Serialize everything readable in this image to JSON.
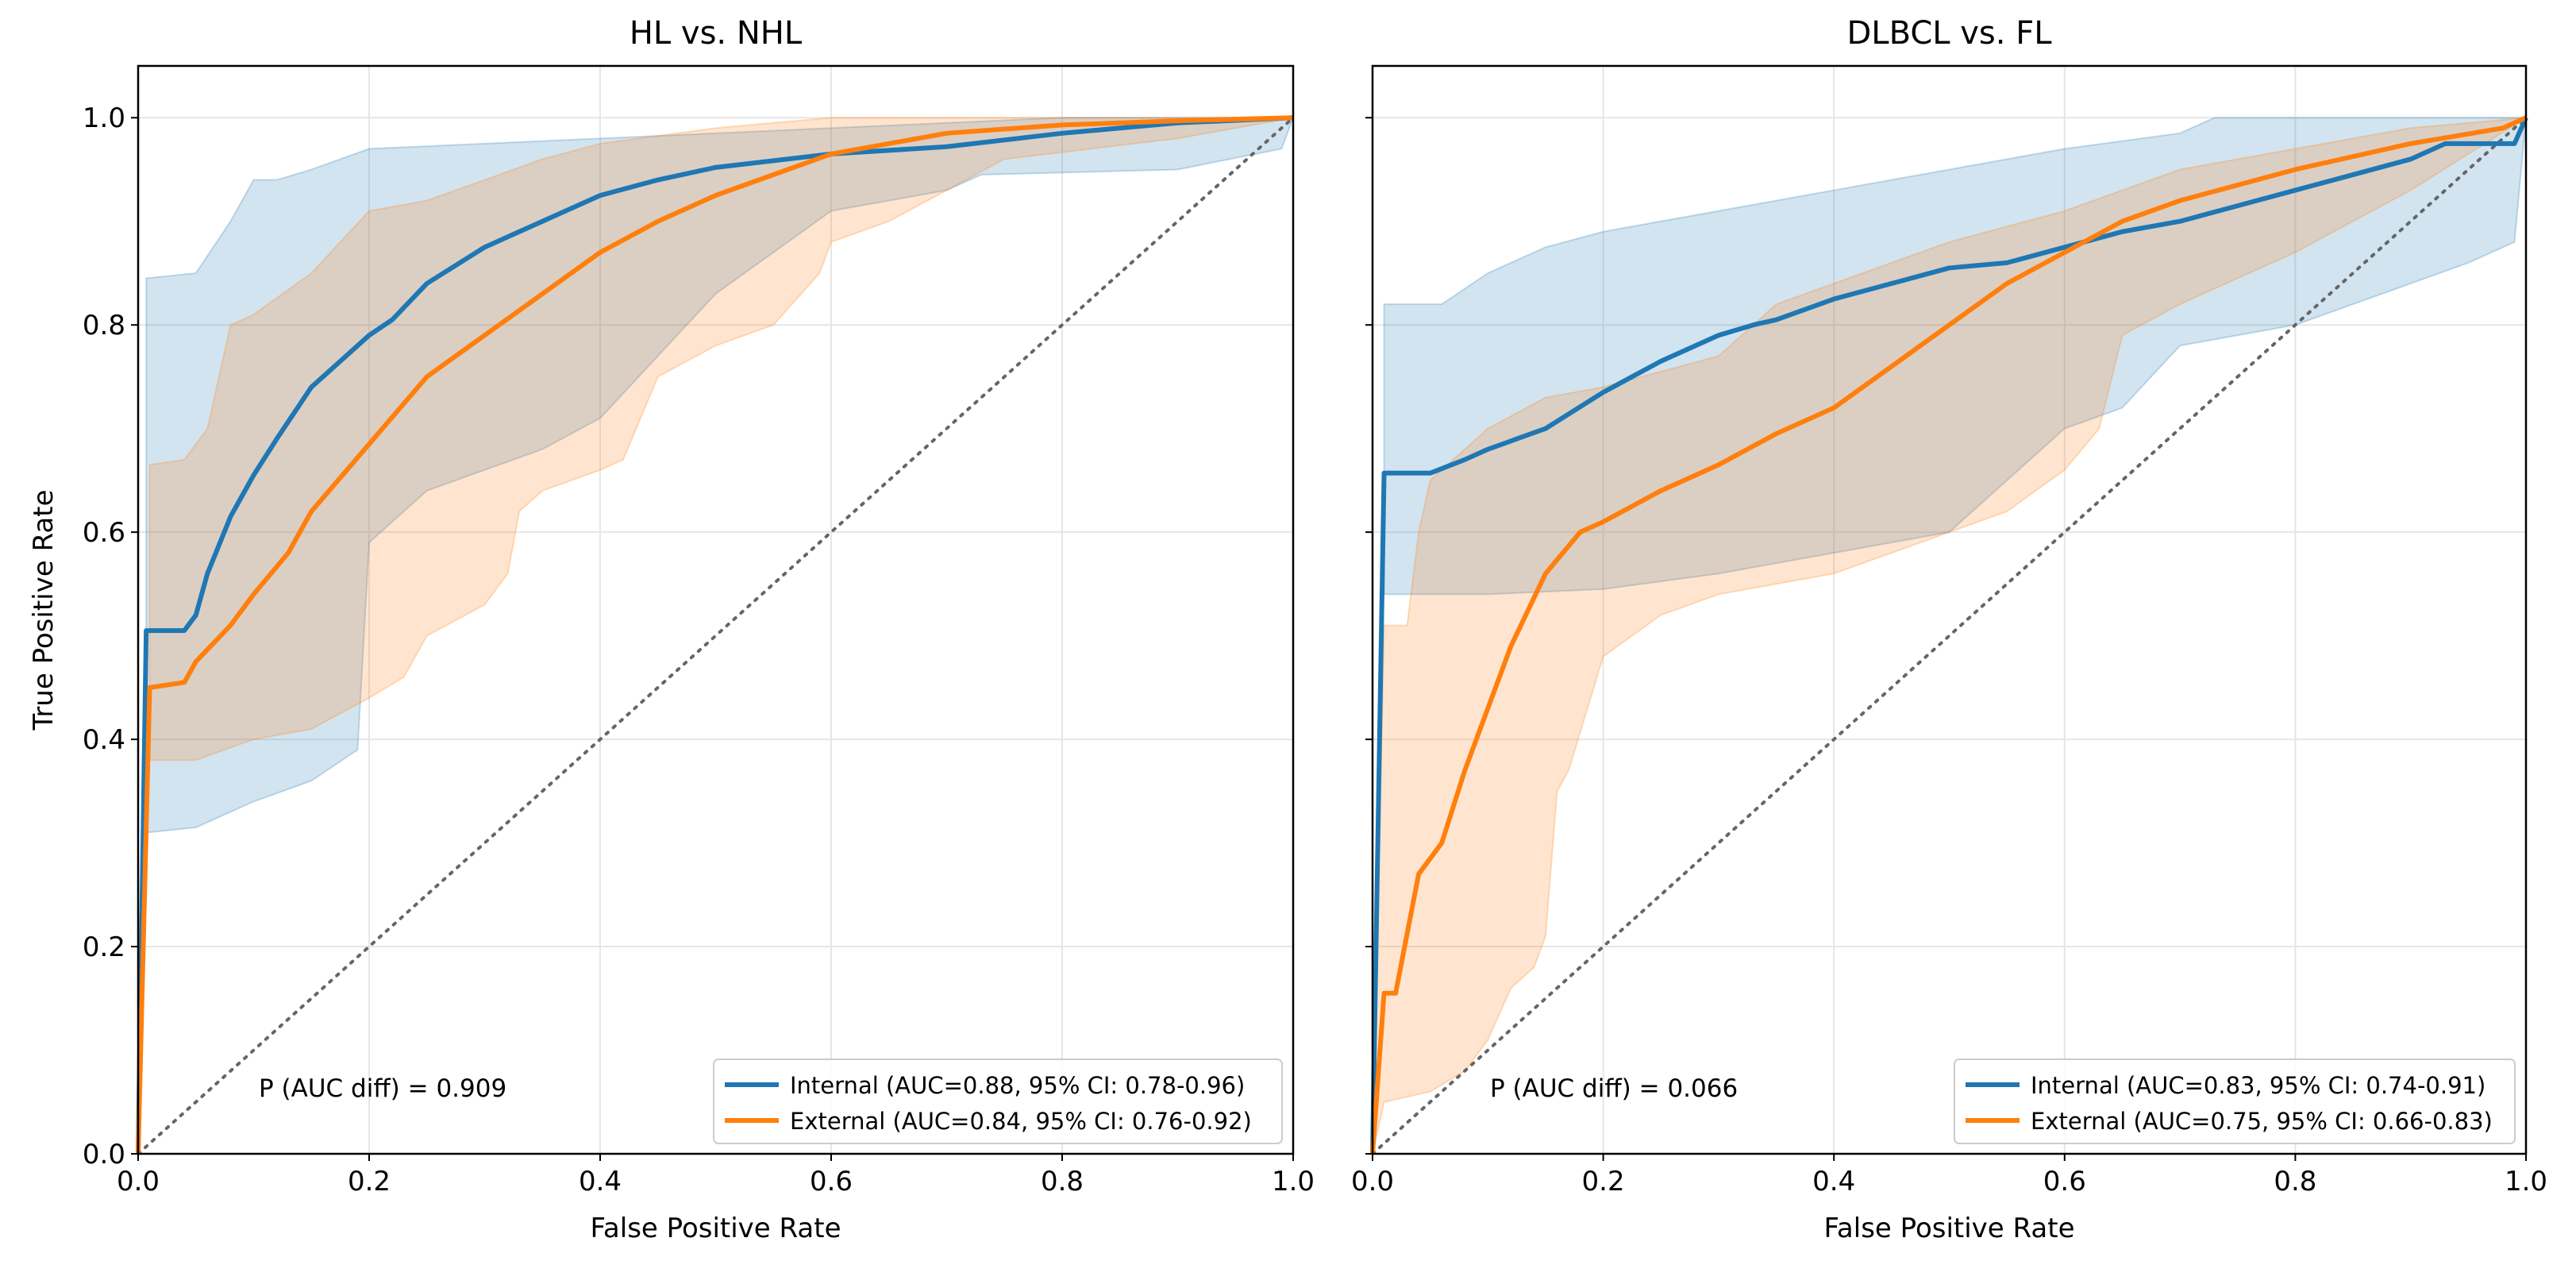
{
  "colors": {
    "internal": "#1f77b4",
    "external": "#ff7f0e",
    "diag": "#666666"
  },
  "chart_data": [
    {
      "type": "line",
      "title": "HL vs. NHL",
      "xlabel": "False Positive Rate",
      "ylabel": "True Positive Rate",
      "xlim": [
        0,
        1
      ],
      "ylim": [
        0,
        1.05
      ],
      "xticks": [
        "0.0",
        "0.2",
        "0.4",
        "0.6",
        "0.8",
        "1.0"
      ],
      "yticks": [
        "0.0",
        "0.2",
        "0.4",
        "0.6",
        "0.8",
        "1.0"
      ],
      "grid": true,
      "legend_placement": "lower-right",
      "annotation": "P (AUC diff) = 0.909",
      "series": [
        {
          "name": "Internal (AUC=0.88, 95% CI: 0.78-0.96)",
          "color_key": "internal",
          "x": [
            0,
            0.007,
            0.04,
            0.05,
            0.06,
            0.08,
            0.1,
            0.12,
            0.15,
            0.18,
            0.2,
            0.22,
            0.25,
            0.3,
            0.35,
            0.4,
            0.45,
            0.5,
            0.6,
            0.7,
            0.8,
            0.9,
            1
          ],
          "y": [
            0,
            0.505,
            0.505,
            0.52,
            0.56,
            0.615,
            0.655,
            0.69,
            0.74,
            0.77,
            0.79,
            0.805,
            0.84,
            0.875,
            0.9,
            0.925,
            0.94,
            0.952,
            0.965,
            0.972,
            0.985,
            0.995,
            1
          ],
          "ci_upper": {
            "x": [
              0.007,
              0.05,
              0.08,
              0.1,
              0.12,
              0.15,
              0.2,
              0.3,
              0.4,
              0.6,
              0.8,
              1
            ],
            "y": [
              0.845,
              0.85,
              0.9,
              0.94,
              0.94,
              0.95,
              0.97,
              0.975,
              0.98,
              0.99,
              1,
              1
            ]
          },
          "ci_lower": {
            "x": [
              0.007,
              0.05,
              0.1,
              0.15,
              0.19,
              0.2,
              0.25,
              0.3,
              0.35,
              0.4,
              0.45,
              0.5,
              0.55,
              0.6,
              0.7,
              0.73,
              0.9,
              0.99,
              1
            ],
            "y": [
              0.31,
              0.315,
              0.34,
              0.36,
              0.39,
              0.59,
              0.64,
              0.66,
              0.68,
              0.71,
              0.77,
              0.83,
              0.87,
              0.91,
              0.93,
              0.945,
              0.95,
              0.97,
              1
            ]
          }
        },
        {
          "name": "External (AUC=0.84, 95% CI: 0.76-0.92)",
          "color_key": "external",
          "x": [
            0,
            0.01,
            0.04,
            0.05,
            0.08,
            0.1,
            0.13,
            0.15,
            0.2,
            0.25,
            0.3,
            0.35,
            0.4,
            0.45,
            0.5,
            0.55,
            0.6,
            0.7,
            0.8,
            0.9,
            1
          ],
          "y": [
            0,
            0.45,
            0.455,
            0.475,
            0.51,
            0.54,
            0.58,
            0.62,
            0.685,
            0.75,
            0.79,
            0.83,
            0.87,
            0.9,
            0.925,
            0.945,
            0.965,
            0.985,
            0.993,
            0.997,
            1
          ],
          "ci_upper": {
            "x": [
              0.01,
              0.04,
              0.06,
              0.08,
              0.1,
              0.15,
              0.2,
              0.25,
              0.3,
              0.35,
              0.4,
              0.5,
              0.6,
              1
            ],
            "y": [
              0.665,
              0.67,
              0.7,
              0.8,
              0.81,
              0.85,
              0.91,
              0.92,
              0.94,
              0.96,
              0.975,
              0.99,
              1,
              1
            ]
          },
          "ci_lower": {
            "x": [
              0.01,
              0.05,
              0.1,
              0.15,
              0.2,
              0.23,
              0.25,
              0.3,
              0.32,
              0.33,
              0.35,
              0.4,
              0.42,
              0.45,
              0.5,
              0.55,
              0.59,
              0.6,
              0.65,
              0.7,
              0.75,
              0.9,
              1
            ],
            "y": [
              0.38,
              0.38,
              0.4,
              0.41,
              0.44,
              0.46,
              0.5,
              0.53,
              0.56,
              0.62,
              0.64,
              0.66,
              0.67,
              0.75,
              0.78,
              0.8,
              0.85,
              0.88,
              0.9,
              0.93,
              0.96,
              0.98,
              1
            ]
          }
        }
      ]
    },
    {
      "type": "line",
      "title": "DLBCL vs. FL",
      "xlabel": "False Positive Rate",
      "ylabel": "",
      "xlim": [
        0,
        1
      ],
      "ylim": [
        0,
        1.05
      ],
      "xticks": [
        "0.0",
        "0.2",
        "0.4",
        "0.6",
        "0.8",
        "1.0"
      ],
      "grid": true,
      "legend_placement": "lower-right",
      "annotation": "P (AUC diff) = 0.066",
      "series": [
        {
          "name": "Internal (AUC=0.83, 95% CI: 0.74-0.91)",
          "color_key": "internal",
          "x": [
            0,
            0.01,
            0.05,
            0.08,
            0.1,
            0.15,
            0.2,
            0.25,
            0.3,
            0.33,
            0.35,
            0.4,
            0.45,
            0.5,
            0.55,
            0.6,
            0.65,
            0.7,
            0.8,
            0.9,
            0.93,
            0.99,
            1
          ],
          "y": [
            0,
            0.657,
            0.657,
            0.67,
            0.68,
            0.7,
            0.735,
            0.765,
            0.79,
            0.8,
            0.805,
            0.825,
            0.84,
            0.855,
            0.86,
            0.875,
            0.89,
            0.9,
            0.93,
            0.96,
            0.975,
            0.975,
            1
          ],
          "ci_upper": {
            "x": [
              0.01,
              0.06,
              0.1,
              0.15,
              0.2,
              0.3,
              0.4,
              0.5,
              0.6,
              0.7,
              0.73,
              1
            ],
            "y": [
              0.82,
              0.82,
              0.85,
              0.875,
              0.89,
              0.91,
              0.93,
              0.95,
              0.97,
              0.985,
              1,
              1
            ]
          },
          "ci_lower": {
            "x": [
              0.01,
              0.1,
              0.2,
              0.3,
              0.4,
              0.5,
              0.6,
              0.65,
              0.7,
              0.8,
              0.9,
              0.95,
              0.99,
              1
            ],
            "y": [
              0.54,
              0.54,
              0.545,
              0.56,
              0.58,
              0.6,
              0.7,
              0.72,
              0.78,
              0.8,
              0.84,
              0.86,
              0.88,
              1
            ]
          }
        },
        {
          "name": "External (AUC=0.75, 95% CI: 0.66-0.83)",
          "color_key": "external",
          "x": [
            0,
            0.01,
            0.02,
            0.04,
            0.06,
            0.08,
            0.1,
            0.12,
            0.15,
            0.18,
            0.2,
            0.25,
            0.3,
            0.35,
            0.4,
            0.45,
            0.5,
            0.55,
            0.6,
            0.65,
            0.7,
            0.8,
            0.9,
            0.98,
            1
          ],
          "y": [
            0,
            0.155,
            0.155,
            0.27,
            0.3,
            0.37,
            0.43,
            0.49,
            0.56,
            0.6,
            0.61,
            0.64,
            0.665,
            0.695,
            0.72,
            0.76,
            0.8,
            0.84,
            0.87,
            0.9,
            0.92,
            0.95,
            0.975,
            0.99,
            1
          ],
          "ci_upper": {
            "x": [
              0.01,
              0.03,
              0.04,
              0.05,
              0.1,
              0.15,
              0.2,
              0.3,
              0.35,
              0.4,
              0.5,
              0.6,
              0.7,
              0.8,
              0.9,
              1
            ],
            "y": [
              0.51,
              0.51,
              0.6,
              0.65,
              0.7,
              0.73,
              0.74,
              0.77,
              0.82,
              0.84,
              0.88,
              0.91,
              0.95,
              0.97,
              0.99,
              1
            ]
          },
          "ci_lower": {
            "x": [
              0,
              0.01,
              0.05,
              0.08,
              0.1,
              0.12,
              0.14,
              0.15,
              0.16,
              0.17,
              0.2,
              0.25,
              0.3,
              0.4,
              0.5,
              0.55,
              0.6,
              0.63,
              0.65,
              0.7,
              0.8,
              0.9,
              1
            ],
            "y": [
              0,
              0.05,
              0.06,
              0.08,
              0.11,
              0.16,
              0.18,
              0.21,
              0.35,
              0.37,
              0.48,
              0.52,
              0.54,
              0.56,
              0.6,
              0.62,
              0.66,
              0.7,
              0.79,
              0.82,
              0.87,
              0.93,
              1
            ]
          }
        }
      ]
    }
  ]
}
